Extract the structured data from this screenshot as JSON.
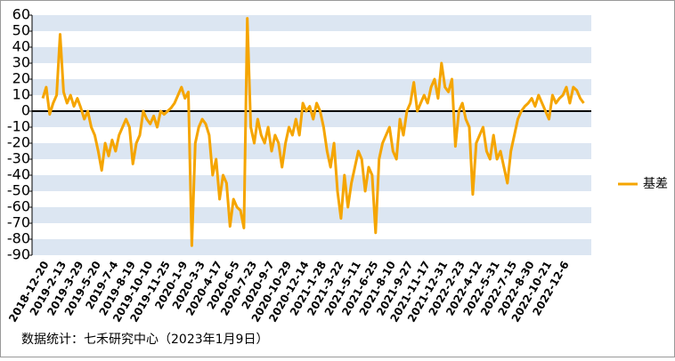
{
  "chart_data": {
    "type": "line",
    "categories": [
      "2018-12-20",
      null,
      null,
      null,
      null,
      "2019-2-13",
      null,
      null,
      null,
      null,
      "2019-3-29",
      null,
      null,
      null,
      null,
      "2019-5-20",
      null,
      null,
      null,
      null,
      "2019-7-4",
      null,
      null,
      null,
      null,
      "2019-8-19",
      null,
      null,
      null,
      null,
      "2019-10-10",
      null,
      null,
      null,
      null,
      "2019-11-25",
      null,
      null,
      null,
      null,
      "2020-1-9",
      null,
      null,
      null,
      null,
      "2020-3-3",
      null,
      null,
      null,
      null,
      "2020-4-17",
      null,
      null,
      null,
      null,
      "2020-6-5",
      null,
      null,
      null,
      null,
      "2020-7-23",
      null,
      null,
      null,
      null,
      "2020-9-7",
      null,
      null,
      null,
      null,
      "2020-10-29",
      null,
      null,
      null,
      null,
      "2020-12-14",
      null,
      null,
      null,
      null,
      "2021-1-28",
      null,
      null,
      null,
      null,
      "2021-3-22",
      null,
      null,
      null,
      null,
      "2021-5-11",
      null,
      null,
      null,
      null,
      "2021-6-25",
      null,
      null,
      null,
      null,
      "2021-8-10",
      null,
      null,
      null,
      null,
      "2021-9-27",
      null,
      null,
      null,
      null,
      "2021-11-17",
      null,
      null,
      null,
      null,
      "2021-12-31",
      null,
      null,
      null,
      null,
      "2022-2-23",
      null,
      null,
      null,
      null,
      "2022-4-12",
      null,
      null,
      null,
      null,
      "2022-5-31",
      null,
      null,
      null,
      null,
      "2022-7-15",
      null,
      null,
      null,
      null,
      "2022-8-30",
      null,
      null,
      null,
      null,
      "2022-10-21",
      null,
      null,
      null,
      null,
      "2022-12-6",
      null,
      null,
      null,
      null,
      null,
      null
    ],
    "series": [
      {
        "name": "基差",
        "color": "#f5a500",
        "values": [
          8,
          15,
          -2,
          5,
          10,
          48,
          12,
          5,
          10,
          3,
          8,
          2,
          -5,
          0,
          -10,
          -15,
          -25,
          -37,
          -20,
          -28,
          -18,
          -25,
          -15,
          -10,
          -5,
          -10,
          -33,
          -20,
          -15,
          0,
          -5,
          -8,
          -3,
          -10,
          0,
          -2,
          0,
          2,
          5,
          10,
          15,
          8,
          12,
          -84,
          -20,
          -10,
          -5,
          -8,
          -15,
          -40,
          -30,
          -55,
          -40,
          -45,
          -72,
          -55,
          -60,
          -62,
          -73,
          58,
          -10,
          -20,
          -5,
          -15,
          -20,
          -10,
          -25,
          -15,
          -20,
          -35,
          -20,
          -10,
          -15,
          -5,
          -15,
          5,
          0,
          3,
          -5,
          5,
          0,
          -10,
          -25,
          -35,
          -20,
          -50,
          -67,
          -40,
          -60,
          -45,
          -35,
          -25,
          -30,
          -50,
          -35,
          -40,
          -76,
          -30,
          -20,
          -15,
          -10,
          -25,
          -30,
          -5,
          -15,
          0,
          5,
          18,
          0,
          5,
          10,
          5,
          15,
          20,
          8,
          30,
          15,
          12,
          20,
          -22,
          0,
          5,
          -5,
          -10,
          -52,
          -20,
          -15,
          -10,
          -25,
          -30,
          -15,
          -30,
          -25,
          -35,
          -45,
          -25,
          -15,
          -5,
          0,
          3,
          5,
          8,
          3,
          10,
          5,
          0,
          -5,
          10,
          5,
          8,
          10,
          15,
          5,
          15,
          13,
          8,
          5
        ]
      }
    ],
    "ylim": [
      -90,
      60
    ],
    "yticks": [
      -90,
      -80,
      -70,
      -60,
      -50,
      -40,
      -30,
      -20,
      -10,
      0,
      10,
      20,
      30,
      40,
      50,
      60
    ],
    "grid": true,
    "legend": "right",
    "source": "数据统计：七禾研究中心（2023年1月9日）"
  }
}
